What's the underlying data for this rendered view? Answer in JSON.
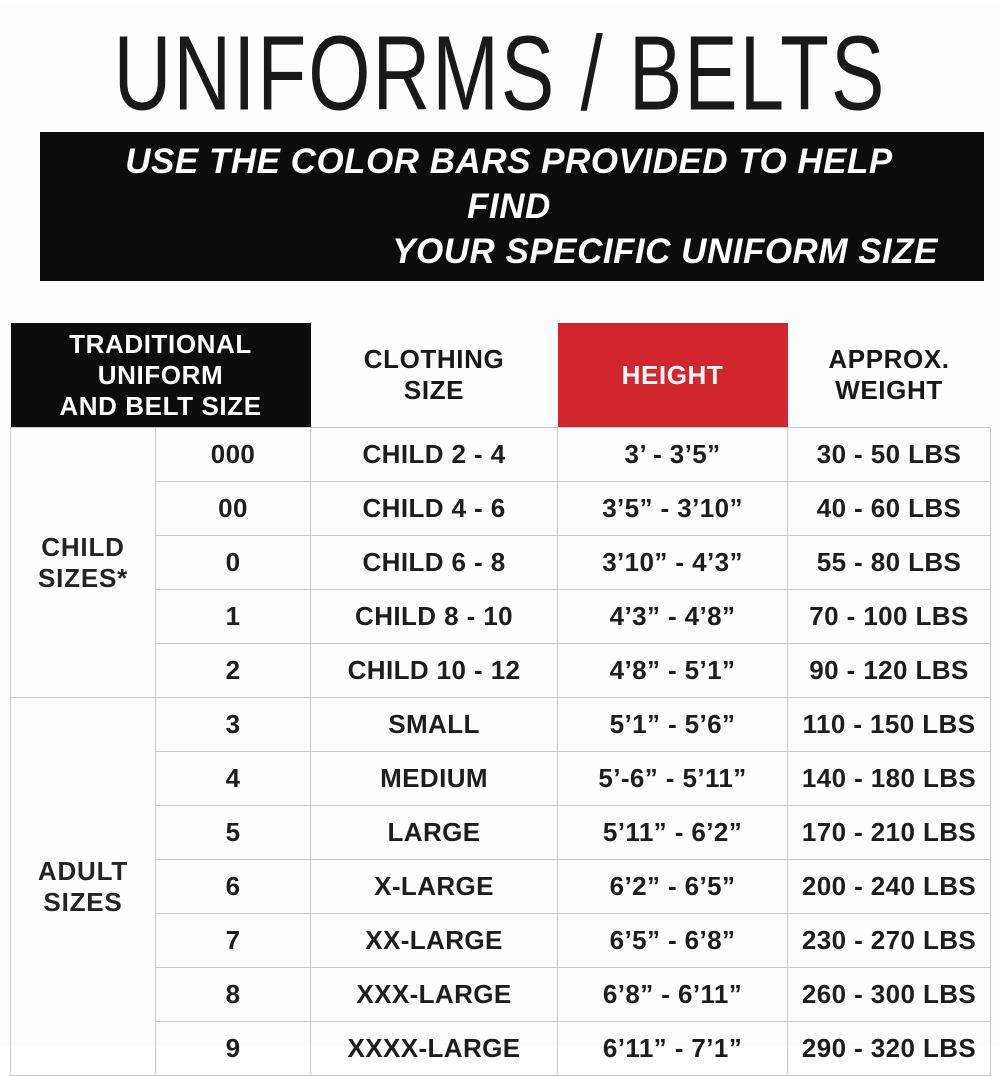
{
  "page": {
    "title": "UNIFORMS / BELTS",
    "banner": {
      "line1": "USE THE COLOR BARS PROVIDED TO HELP FIND",
      "line2": "YOUR SPECIFIC UNIFORM SIZE"
    }
  },
  "colors": {
    "accent_red": "#d2262e",
    "banner_black": "#0c0c0c",
    "grid_gray": "#c9c9c9"
  },
  "table": {
    "header_traditional": "TRADITIONAL\nUNIFORM\nAND BELT SIZE",
    "header_clothing": "CLOTHING\nSIZE",
    "header_height": "HEIGHT",
    "header_weight": "APPROX.\nWEIGHT",
    "groups": [
      {
        "label": "CHILD\nSIZES*",
        "rows": [
          {
            "size": "000",
            "clothing": "CHILD 2 - 4",
            "height": "3’ - 3’5”",
            "weight": "30 - 50 LBS"
          },
          {
            "size": "00",
            "clothing": "CHILD 4 - 6",
            "height": "3’5” - 3’10”",
            "weight": "40 - 60 LBS"
          },
          {
            "size": "0",
            "clothing": "CHILD 6 - 8",
            "height": "3’10” - 4’3”",
            "weight": "55 - 80 LBS"
          },
          {
            "size": "1",
            "clothing": "CHILD 8 - 10",
            "height": "4’3” - 4’8”",
            "weight": "70 - 100 LBS"
          },
          {
            "size": "2",
            "clothing": "CHILD 10 - 12",
            "height": "4’8” - 5’1”",
            "weight": "90 - 120 LBS"
          }
        ]
      },
      {
        "label": "ADULT\nSIZES",
        "rows": [
          {
            "size": "3",
            "clothing": "SMALL",
            "height": "5’1” - 5’6”",
            "weight": "110 - 150 LBS"
          },
          {
            "size": "4",
            "clothing": "MEDIUM",
            "height": "5’-6” - 5’11”",
            "weight": "140 - 180 LBS"
          },
          {
            "size": "5",
            "clothing": "LARGE",
            "height": "5’11” - 6’2”",
            "weight": "170 - 210 LBS"
          },
          {
            "size": "6",
            "clothing": "X-LARGE",
            "height": "6’2” - 6’5”",
            "weight": "200 - 240 LBS"
          },
          {
            "size": "7",
            "clothing": "XX-LARGE",
            "height": "6’5” - 6’8”",
            "weight": "230 - 270 LBS"
          },
          {
            "size": "8",
            "clothing": "XXX-LARGE",
            "height": "6’8” - 6’11”",
            "weight": "260 - 300 LBS"
          },
          {
            "size": "9",
            "clothing": "XXXX-LARGE",
            "height": "6’11” - 7’1”",
            "weight": "290 - 320 LBS"
          }
        ]
      }
    ]
  }
}
